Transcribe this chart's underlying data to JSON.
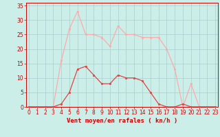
{
  "xlabel": "Vent moyen/en rafales ( kn/h )",
  "background_color": "#cbeee9",
  "grid_color": "#aacccc",
  "x_values": [
    0,
    1,
    2,
    3,
    4,
    5,
    6,
    7,
    8,
    9,
    10,
    11,
    12,
    13,
    14,
    15,
    16,
    17,
    18,
    19,
    20,
    21,
    22,
    23
  ],
  "wind_avg": [
    0,
    0,
    0,
    0,
    1,
    5,
    13,
    14,
    11,
    8,
    8,
    11,
    10,
    10,
    9,
    5,
    1,
    0,
    0,
    1,
    0,
    0,
    0,
    0
  ],
  "wind_gust": [
    0,
    0,
    0,
    0,
    16,
    27,
    33,
    25,
    25,
    24,
    21,
    28,
    25,
    25,
    24,
    24,
    24,
    20,
    13,
    0,
    8,
    0,
    0,
    0
  ],
  "line_color_avg": "#dd4444",
  "line_color_gust": "#ffaaaa",
  "marker": "s",
  "markersize": 2.0,
  "linewidth": 0.9,
  "xlim": [
    -0.3,
    23.3
  ],
  "ylim": [
    0,
    36
  ],
  "yticks": [
    0,
    5,
    10,
    15,
    20,
    25,
    30,
    35
  ],
  "xticks": [
    0,
    1,
    2,
    3,
    4,
    5,
    6,
    7,
    8,
    9,
    10,
    11,
    12,
    13,
    14,
    15,
    16,
    17,
    18,
    19,
    20,
    21,
    22,
    23
  ],
  "tick_fontsize": 5.5,
  "xlabel_fontsize": 6.5,
  "label_color": "#cc0000"
}
